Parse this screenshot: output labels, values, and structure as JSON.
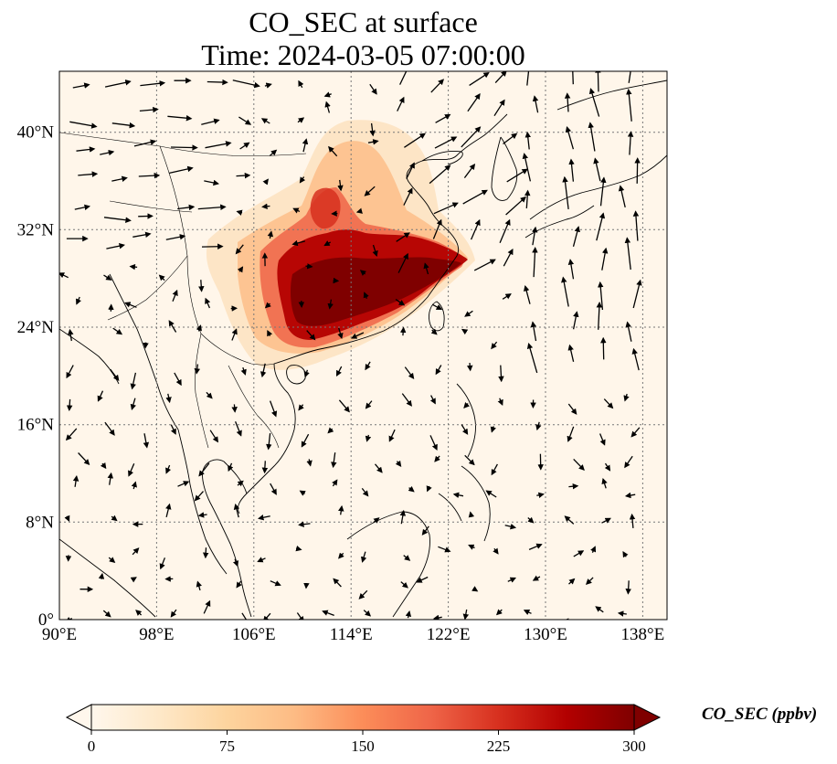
{
  "title": {
    "line1": "CO_SEC at surface",
    "line2": "Time: 2024-03-05 07:00:00"
  },
  "map": {
    "type": "filled-contour with wind vectors",
    "projection": "PlateCarree",
    "lon_range": [
      90,
      140
    ],
    "lat_range": [
      0,
      45
    ],
    "gridlines": "dotted",
    "lon_ticks": [
      {
        "value": 90,
        "label": "90°E"
      },
      {
        "value": 98,
        "label": "98°E"
      },
      {
        "value": 106,
        "label": "106°E"
      },
      {
        "value": 114,
        "label": "114°E"
      },
      {
        "value": 122,
        "label": "122°E"
      },
      {
        "value": 130,
        "label": "130°E"
      },
      {
        "value": 138,
        "label": "138°E"
      }
    ],
    "lat_ticks": [
      {
        "value": 0,
        "label": "0°"
      },
      {
        "value": 8,
        "label": "8°N"
      },
      {
        "value": 16,
        "label": "16°N"
      },
      {
        "value": 24,
        "label": "24°N"
      },
      {
        "value": 32,
        "label": "32°N"
      },
      {
        "value": 40,
        "label": "40°N"
      }
    ],
    "colormap": "OrRd",
    "plume_region": "Eastern and southern China, strongest over lower Yangtze to south China (~22–31°N, 108–123°E)"
  },
  "colorbar": {
    "label": "CO_SEC (ppbv)",
    "range": [
      0,
      300
    ],
    "extend": "both",
    "ticks": [
      {
        "value": 0,
        "label": "0"
      },
      {
        "value": 75,
        "label": "75"
      },
      {
        "value": 150,
        "label": "150"
      },
      {
        "value": 225,
        "label": "225"
      },
      {
        "value": 300,
        "label": "300"
      }
    ],
    "colors": [
      "#fff7ec",
      "#fee8c8",
      "#fdd49e",
      "#fdbb84",
      "#fc8d59",
      "#ef6548",
      "#d7301f",
      "#b30000",
      "#7f0000"
    ]
  }
}
